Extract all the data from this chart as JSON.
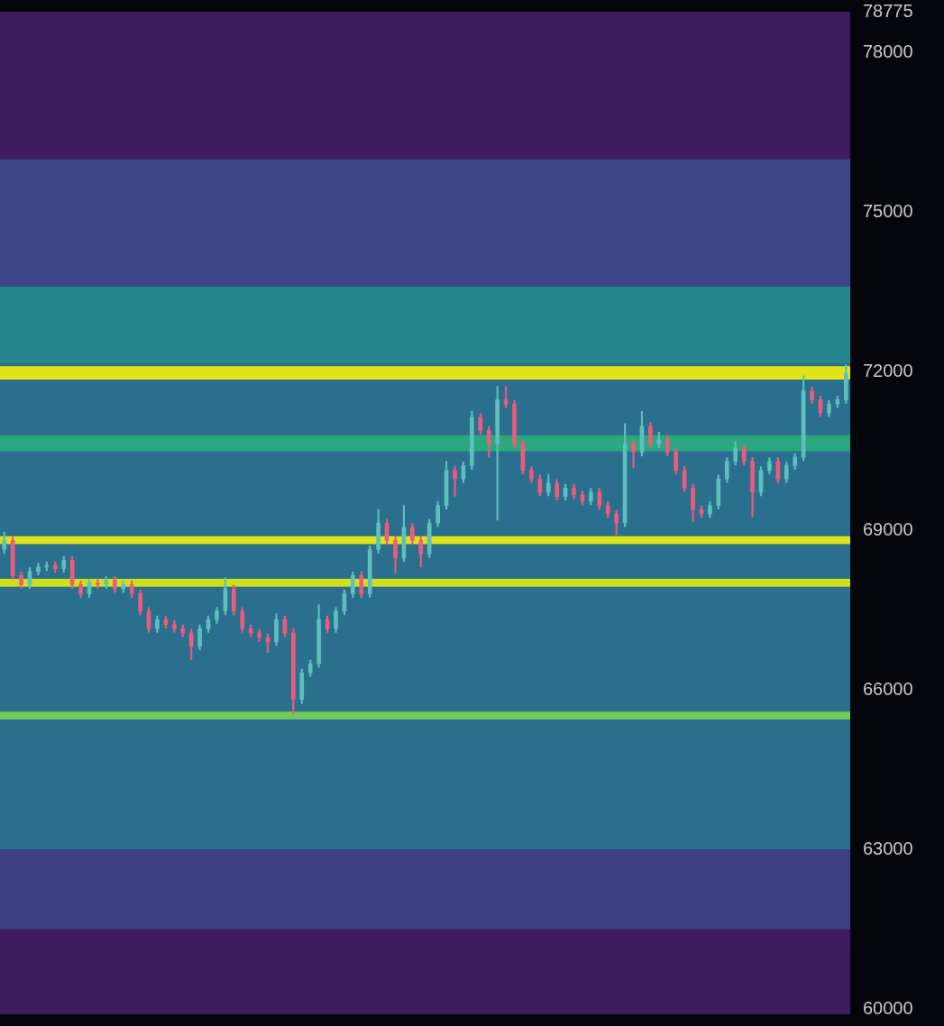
{
  "chart_data": {
    "type": "candlestick",
    "categories": [
      null,
      null,
      null,
      null,
      null,
      null,
      null,
      null,
      null,
      null,
      null,
      null,
      null,
      null,
      null,
      null,
      null,
      null,
      null,
      null,
      null,
      null,
      null,
      null,
      null,
      null,
      null,
      null,
      null,
      null,
      null,
      null,
      null,
      null,
      null,
      null,
      null,
      null,
      null,
      null,
      null,
      null,
      null,
      null,
      null,
      null,
      null,
      null,
      null,
      null,
      null,
      null,
      null,
      null,
      null,
      null,
      null,
      null,
      null,
      null,
      null,
      null,
      null,
      null,
      null,
      null,
      null,
      null,
      null,
      null,
      null,
      null,
      null,
      null,
      null,
      null,
      null,
      null,
      null,
      null,
      null,
      null,
      null,
      null,
      null,
      null,
      null,
      null,
      null,
      null,
      null,
      null,
      null,
      null,
      null,
      null,
      null,
      null,
      null,
      null
    ],
    "ohlc": [
      [
        68650,
        68980,
        68570,
        68820
      ],
      [
        68820,
        68890,
        68090,
        68160
      ],
      [
        68160,
        68230,
        67920,
        67990
      ],
      [
        67990,
        68310,
        67920,
        68240
      ],
      [
        68240,
        68390,
        68170,
        68320
      ],
      [
        68320,
        68420,
        68250,
        68350
      ],
      [
        68350,
        68420,
        68220,
        68290
      ],
      [
        68290,
        68520,
        68220,
        68450
      ],
      [
        68450,
        68520,
        67920,
        67990
      ],
      [
        67990,
        68060,
        67750,
        67820
      ],
      [
        67820,
        68090,
        67750,
        68020
      ],
      [
        68020,
        68090,
        67920,
        67990
      ],
      [
        67990,
        68140,
        67920,
        68070
      ],
      [
        68070,
        68140,
        67840,
        67910
      ],
      [
        67910,
        68060,
        67840,
        67990
      ],
      [
        67990,
        68060,
        67750,
        67820
      ],
      [
        67820,
        67890,
        67420,
        67490
      ],
      [
        67490,
        67560,
        67090,
        67160
      ],
      [
        67160,
        67400,
        67090,
        67330
      ],
      [
        67330,
        67400,
        67170,
        67240
      ],
      [
        67240,
        67310,
        67090,
        67160
      ],
      [
        67160,
        67230,
        67010,
        67080
      ],
      [
        67080,
        67150,
        66580,
        66830
      ],
      [
        66830,
        67230,
        66760,
        67160
      ],
      [
        67160,
        67400,
        67090,
        67330
      ],
      [
        67330,
        67560,
        67260,
        67490
      ],
      [
        67490,
        68120,
        67420,
        67910
      ],
      [
        67910,
        67980,
        67420,
        67490
      ],
      [
        67490,
        67560,
        67090,
        67160
      ],
      [
        67160,
        67230,
        67010,
        67080
      ],
      [
        67080,
        67150,
        66920,
        66990
      ],
      [
        66990,
        67060,
        66710,
        66910
      ],
      [
        66910,
        67440,
        66840,
        67330
      ],
      [
        67330,
        67400,
        67010,
        67080
      ],
      [
        67080,
        67160,
        65550,
        65830
      ],
      [
        65830,
        66400,
        65750,
        66330
      ],
      [
        66330,
        66570,
        66260,
        66500
      ],
      [
        66500,
        67610,
        66430,
        67330
      ],
      [
        67330,
        67400,
        67090,
        67160
      ],
      [
        67160,
        67560,
        67090,
        67490
      ],
      [
        67490,
        67890,
        67420,
        67820
      ],
      [
        67820,
        68230,
        67750,
        68160
      ],
      [
        68160,
        68230,
        67750,
        67820
      ],
      [
        67820,
        68720,
        67750,
        68650
      ],
      [
        68650,
        69400,
        68580,
        69150
      ],
      [
        69150,
        69220,
        68750,
        68820
      ],
      [
        68820,
        68890,
        68210,
        68490
      ],
      [
        68490,
        69480,
        68420,
        69070
      ],
      [
        69070,
        69140,
        68750,
        68820
      ],
      [
        68820,
        68890,
        68320,
        68570
      ],
      [
        68570,
        69220,
        68500,
        69150
      ],
      [
        69150,
        69550,
        69080,
        69480
      ],
      [
        69480,
        70310,
        69410,
        70140
      ],
      [
        70140,
        70210,
        69650,
        69980
      ],
      [
        69980,
        70300,
        69910,
        70230
      ],
      [
        70230,
        71250,
        70160,
        71140
      ],
      [
        71140,
        71210,
        70820,
        70890
      ],
      [
        70890,
        70960,
        70390,
        70640
      ],
      [
        70640,
        71720,
        69200,
        71470
      ],
      [
        71470,
        71720,
        71320,
        71390
      ],
      [
        71390,
        71460,
        70570,
        70640
      ],
      [
        70640,
        70710,
        70070,
        70140
      ],
      [
        70140,
        70210,
        69910,
        69980
      ],
      [
        69980,
        70050,
        69660,
        69730
      ],
      [
        69730,
        70060,
        69660,
        69900
      ],
      [
        69900,
        69970,
        69580,
        69650
      ],
      [
        69650,
        69880,
        69580,
        69810
      ],
      [
        69810,
        69880,
        69610,
        69680
      ],
      [
        69680,
        69750,
        69490,
        69560
      ],
      [
        69560,
        69800,
        69490,
        69730
      ],
      [
        69730,
        69800,
        69410,
        69480
      ],
      [
        69480,
        69550,
        69250,
        69320
      ],
      [
        69320,
        69390,
        68930,
        69150
      ],
      [
        69150,
        71020,
        69080,
        70640
      ],
      [
        70640,
        70710,
        70190,
        70480
      ],
      [
        70480,
        71250,
        70410,
        70970
      ],
      [
        70970,
        71040,
        70570,
        70640
      ],
      [
        70640,
        70860,
        70570,
        70720
      ],
      [
        70720,
        70790,
        70410,
        70480
      ],
      [
        70480,
        70550,
        70070,
        70140
      ],
      [
        70140,
        70210,
        69740,
        69810
      ],
      [
        69810,
        69880,
        69180,
        69400
      ],
      [
        69400,
        69470,
        69250,
        69320
      ],
      [
        69320,
        69550,
        69250,
        69480
      ],
      [
        69480,
        70050,
        69410,
        69980
      ],
      [
        69980,
        70380,
        69910,
        70310
      ],
      [
        70310,
        70690,
        70240,
        70560
      ],
      [
        70560,
        70630,
        70240,
        70310
      ],
      [
        70310,
        70380,
        69270,
        69730
      ],
      [
        69730,
        70210,
        69660,
        70140
      ],
      [
        70140,
        70380,
        70070,
        70310
      ],
      [
        70310,
        70380,
        69910,
        69980
      ],
      [
        69980,
        70300,
        69910,
        70230
      ],
      [
        70230,
        70460,
        70160,
        70390
      ],
      [
        70390,
        71920,
        70320,
        71640
      ],
      [
        71640,
        71710,
        71400,
        71470
      ],
      [
        71470,
        71540,
        71150,
        71220
      ],
      [
        71220,
        71460,
        71150,
        71390
      ],
      [
        71390,
        71540,
        71320,
        71470
      ],
      [
        71470,
        72130,
        71400,
        71970
      ]
    ],
    "colors": [
      "#5ebfbc",
      "#ef5b7b",
      "#ef5b7b",
      "#5ebfbc",
      "#5ebfbc",
      "#5ebfbc",
      "#ef5b7b",
      "#5ebfbc",
      "#ef5b7b",
      "#ef5b7b",
      "#5ebfbc",
      "#ef5b7b",
      "#5ebfbc",
      "#ef5b7b",
      "#5ebfbc",
      "#ef5b7b",
      "#ef5b7b",
      "#ef5b7b",
      "#5ebfbc",
      "#ef5b7b",
      "#ef5b7b",
      "#ef5b7b",
      "#ef5b7b",
      "#5ebfbc",
      "#5ebfbc",
      "#5ebfbc",
      "#5ebfbc",
      "#ef5b7b",
      "#ef5b7b",
      "#ef5b7b",
      "#ef5b7b",
      "#ef5b7b",
      "#5ebfbc",
      "#ef5b7b",
      "#ef5b7b",
      "#5ebfbc",
      "#5ebfbc",
      "#5ebfbc",
      "#ef5b7b",
      "#5ebfbc",
      "#5ebfbc",
      "#5ebfbc",
      "#ef5b7b",
      "#5ebfbc",
      "#5ebfbc",
      "#ef5b7b",
      "#ef5b7b",
      "#5ebfbc",
      "#ef5b7b",
      "#ef5b7b",
      "#5ebfbc",
      "#5ebfbc",
      "#5ebfbc",
      "#ef5b7b",
      "#5ebfbc",
      "#5ebfbc",
      "#ef5b7b",
      "#ef5b7b",
      "#5ebfbc",
      "#ef5b7b",
      "#ef5b7b",
      "#ef5b7b",
      "#ef5b7b",
      "#ef5b7b",
      "#5ebfbc",
      "#ef5b7b",
      "#5ebfbc",
      "#ef5b7b",
      "#ef5b7b",
      "#5ebfbc",
      "#ef5b7b",
      "#ef5b7b",
      "#ef5b7b",
      "#5ebfbc",
      "#ef5b7b",
      "#5ebfbc",
      "#ef5b7b",
      "#5ebfbc",
      "#ef5b7b",
      "#ef5b7b",
      "#ef5b7b",
      "#ef5b7b",
      "#ef5b7b",
      "#5ebfbc",
      "#5ebfbc",
      "#5ebfbc",
      "#5ebfbc",
      "#ef5b7b",
      "#ef5b7b",
      "#5ebfbc",
      "#5ebfbc",
      "#ef5b7b",
      "#5ebfbc",
      "#5ebfbc",
      "#5ebfbc",
      "#ef5b7b",
      "#ef5b7b",
      "#5ebfbc",
      "#5ebfbc",
      "#5ebfbc"
    ],
    "ylim": [
      59900,
      78775
    ],
    "yticks": [
      60000,
      63000,
      66000,
      69000,
      72000,
      75000,
      78000,
      78775
    ],
    "bands": [
      {
        "axis": "y",
        "from": 63000,
        "to": 72150,
        "color": "#2a6f8e"
      },
      {
        "axis": "y",
        "from": 72150,
        "to": 73600,
        "color": "#25868e"
      },
      {
        "axis": "y",
        "from": 70500,
        "to": 70800,
        "color": "#2ba880"
      },
      {
        "axis": "y",
        "from": 71850,
        "to": 72100,
        "color": "#e3e418"
      },
      {
        "axis": "y",
        "from": 68750,
        "to": 68900,
        "color": "#dde318"
      },
      {
        "axis": "y",
        "from": 67950,
        "to": 68100,
        "color": "#d0e11c"
      },
      {
        "axis": "y",
        "from": 65450,
        "to": 65600,
        "color": "#6ccd5a"
      },
      {
        "axis": "y",
        "from": 61500,
        "to": 63000,
        "color": "#3d3f82"
      },
      {
        "axis": "y",
        "from": 73600,
        "to": 76000,
        "color": "#3e4587"
      }
    ],
    "grid": false,
    "legend": false,
    "tick_labels": "y"
  }
}
